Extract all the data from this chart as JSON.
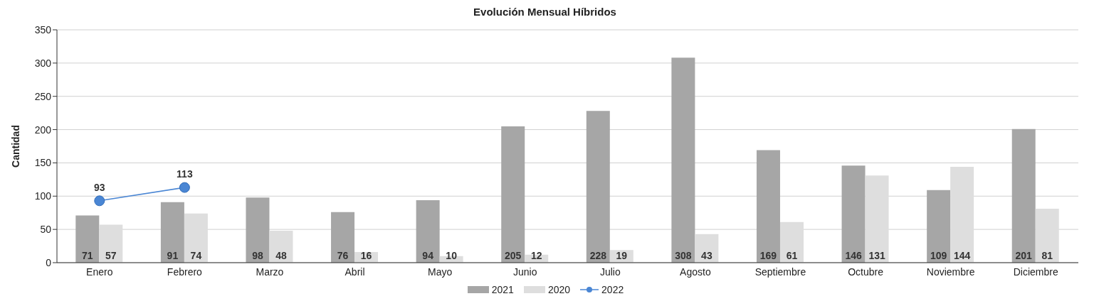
{
  "chart_data": {
    "type": "bar",
    "title": "Evolución Mensual Híbridos",
    "ylabel": "Cantidad",
    "categories": [
      "Enero",
      "Febrero",
      "Marzo",
      "Abril",
      "Mayo",
      "Junio",
      "Julio",
      "Agosto",
      "Septiembre",
      "Octubre",
      "Noviembre",
      "Diciembre"
    ],
    "series": [
      {
        "name": "2021",
        "color": "#a6a6a6",
        "values": [
          71,
          91,
          98,
          76,
          94,
          205,
          228,
          308,
          169,
          146,
          109,
          201
        ]
      },
      {
        "name": "2020",
        "color": "#dedede",
        "values": [
          57,
          74,
          48,
          16,
          10,
          12,
          19,
          43,
          61,
          131,
          144,
          81
        ]
      },
      {
        "name": "2022",
        "type": "line",
        "color": "#4a86d4",
        "marker": "circle",
        "values": [
          93,
          113,
          null,
          null,
          null,
          null,
          null,
          null,
          null,
          null,
          null,
          null
        ]
      }
    ],
    "ylim": [
      0,
      350
    ],
    "yticks": [
      0,
      50,
      100,
      150,
      200,
      250,
      300,
      350
    ],
    "grid": "y",
    "legend": "bottom",
    "data_labels": true
  }
}
